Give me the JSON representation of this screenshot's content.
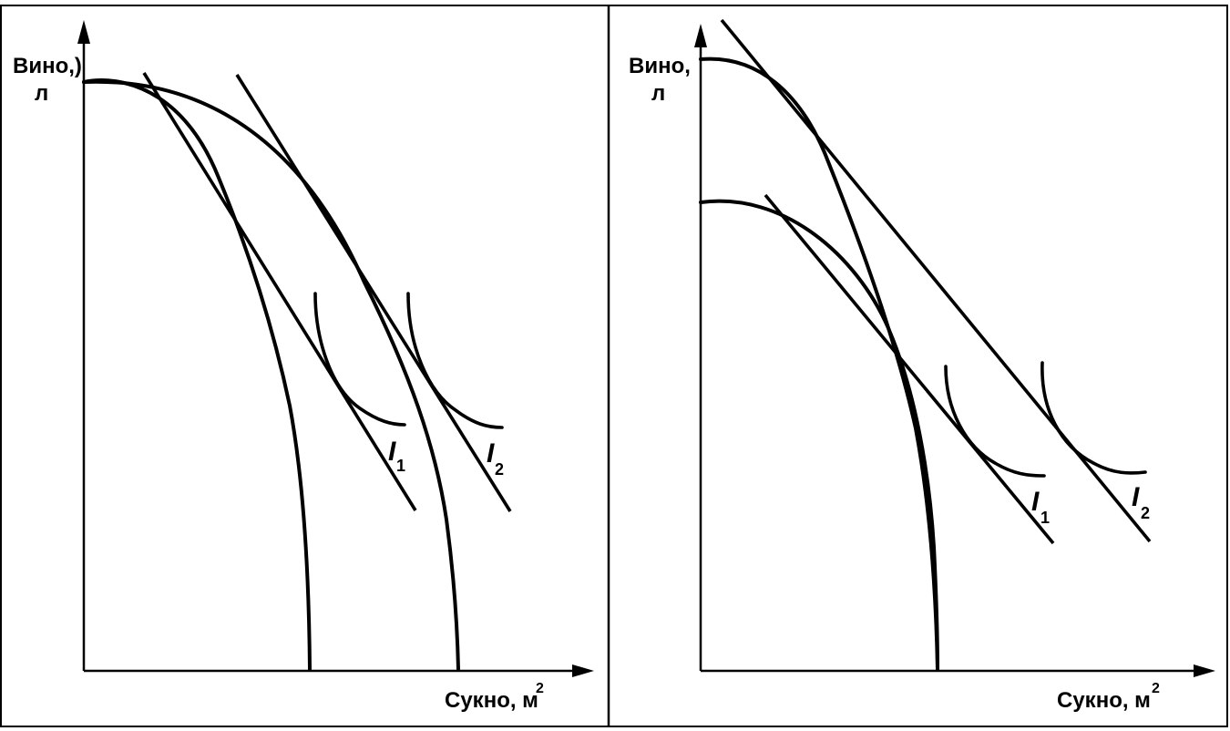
{
  "left_panel": {
    "y_axis_label_line1": "Вино,)",
    "y_axis_label_line2": "л",
    "x_axis_label": "Сукно,  м",
    "x_axis_unit_exponent": "2",
    "indiff_1_letter": "I",
    "indiff_1_subscript": "1",
    "indiff_2_letter": "I",
    "indiff_2_subscript": "2"
  },
  "right_panel": {
    "y_axis_label_line1": "Вино,",
    "y_axis_label_line2": "л",
    "x_axis_label": "Сукно,  м",
    "x_axis_unit_exponent": "2",
    "indiff_1_letter": "I",
    "indiff_1_subscript": "1",
    "indiff_2_letter": "I",
    "indiff_2_subscript": "2"
  }
}
